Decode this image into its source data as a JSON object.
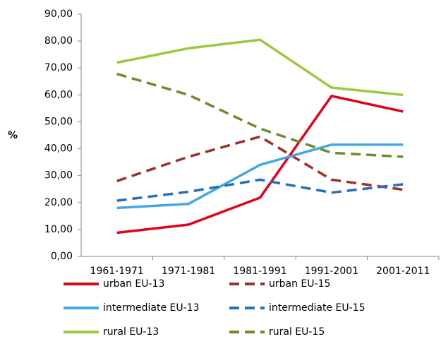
{
  "chart_data": {
    "type": "line",
    "y_label": "%",
    "categories": [
      "1961-1971",
      "1971-1981",
      "1981-1991",
      "1991-2001",
      "2001-2011"
    ],
    "ylim": [
      0,
      90
    ],
    "yticks": [
      {
        "value": 0,
        "label": "0,00"
      },
      {
        "value": 10,
        "label": "10,00"
      },
      {
        "value": 20,
        "label": "20,00"
      },
      {
        "value": 30,
        "label": "30,00"
      },
      {
        "value": 40,
        "label": "40,00"
      },
      {
        "value": 50,
        "label": "50,00"
      },
      {
        "value": 60,
        "label": "60,00"
      },
      {
        "value": 70,
        "label": "70,00"
      },
      {
        "value": 80,
        "label": "80,00"
      },
      {
        "value": 90,
        "label": "90,00"
      }
    ],
    "grid": false,
    "legend": "bottom",
    "series": [
      {
        "name": "urban EU-13",
        "color": "#e2001a",
        "dashed": false,
        "values": [
          8.8,
          11.8,
          21.8,
          59.6,
          53.8
        ]
      },
      {
        "name": "urban EU-15",
        "color": "#9c2f2c",
        "dashed": true,
        "values": [
          28,
          37,
          44.5,
          28.5,
          24.8
        ]
      },
      {
        "name": "intermediate EU-13",
        "color": "#41a9e1",
        "dashed": false,
        "values": [
          18,
          19.5,
          34,
          41.5,
          41.5
        ]
      },
      {
        "name": "intermediate EU-15",
        "color": "#2a6cb8",
        "dashed": true,
        "values": [
          20.7,
          24,
          28.5,
          23.7,
          26.8
        ]
      },
      {
        "name": "rural EU-13",
        "color": "#9dc83d",
        "dashed": false,
        "values": [
          72,
          77.3,
          80.5,
          62.7,
          60
        ]
      },
      {
        "name": "rural EU-15",
        "color": "#6e8b2d",
        "dashed": true,
        "values": [
          67.8,
          60,
          47.5,
          38.5,
          37
        ]
      }
    ]
  }
}
